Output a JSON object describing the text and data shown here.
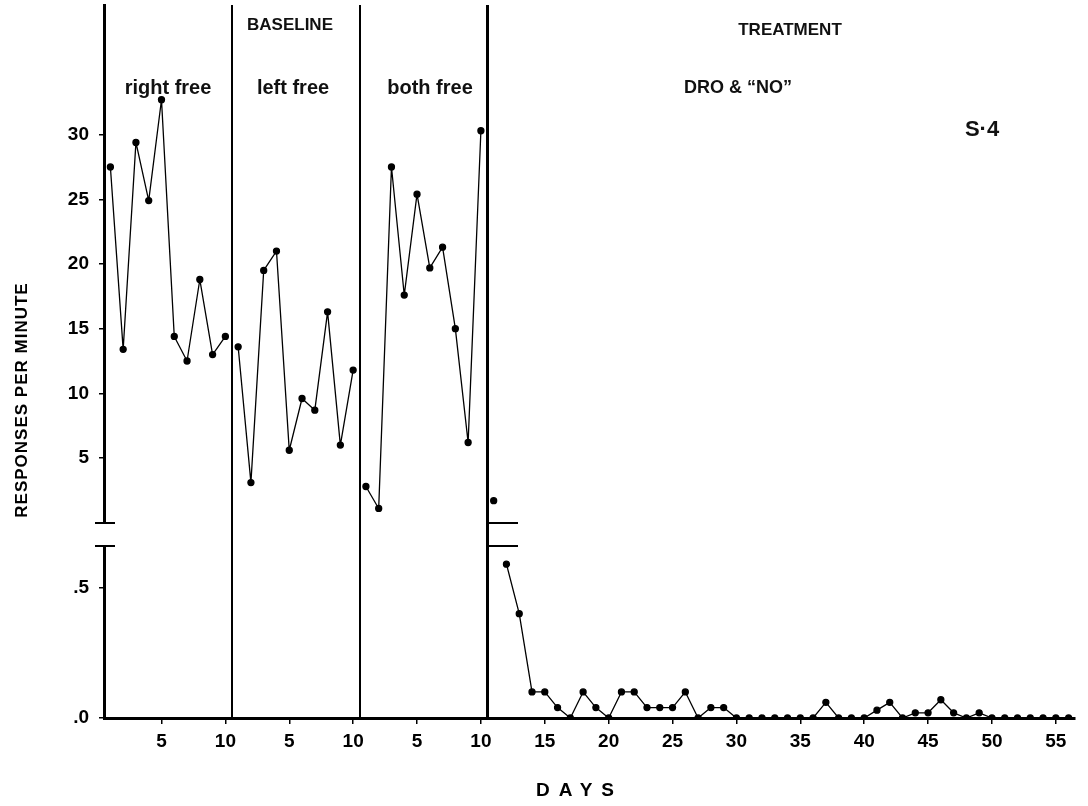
{
  "chart_data": [
    {
      "type": "line",
      "ylabel": "RESPONSES PER MINUTE",
      "ylim": [
        0,
        40
      ],
      "yticks": [
        5,
        10,
        15,
        20,
        25,
        30
      ],
      "tick_labels": "y",
      "marker": "circle",
      "grid": false,
      "legend": false,
      "annotations": [
        "BASELINE",
        "TREATMENT",
        "right free",
        "left free",
        "both free",
        "DRO & “NO”",
        "S·4"
      ],
      "categories": [
        null,
        null,
        null,
        null,
        "5",
        null,
        null,
        null,
        null,
        "10",
        null,
        null,
        null,
        null,
        "5",
        null,
        null,
        null,
        null,
        "10",
        null,
        null,
        null,
        null,
        "5",
        null,
        null,
        null,
        null,
        "10",
        null,
        null,
        null,
        null,
        "15",
        null,
        null,
        null,
        null,
        "20",
        null,
        null,
        null,
        null,
        "25",
        null,
        null,
        null,
        null,
        "30",
        null,
        null,
        null,
        null,
        "35",
        null,
        null,
        null,
        null,
        "40",
        null,
        null,
        null,
        null,
        "45",
        null,
        null,
        null,
        null,
        "50",
        null,
        null,
        null,
        null,
        "55",
        null
      ],
      "series": [
        {
          "color": "#000000",
          "values": [
            27.5,
            13.4,
            29.4,
            24.9,
            32.7,
            14.4,
            12.5,
            18.8,
            13.0,
            14.4,
            null,
            null,
            null,
            null,
            null,
            null,
            null,
            null,
            null,
            null,
            null,
            null,
            null,
            null,
            null,
            null,
            null,
            null,
            null,
            null,
            null,
            null,
            null,
            null,
            null,
            null,
            null,
            null,
            null,
            null,
            null,
            null,
            null,
            null,
            null,
            null,
            null,
            null,
            null,
            null,
            null,
            null,
            null,
            null,
            null,
            null,
            null,
            null,
            null,
            null,
            null,
            null,
            null,
            null,
            null,
            null,
            null,
            null,
            null,
            null,
            null,
            null,
            null,
            null,
            null,
            null
          ]
        },
        {
          "color": "#000000",
          "values": [
            null,
            null,
            null,
            null,
            null,
            null,
            null,
            null,
            null,
            null,
            13.6,
            3.1,
            19.5,
            21.0,
            5.6,
            9.6,
            8.7,
            16.3,
            6.0,
            11.8,
            null,
            null,
            null,
            null,
            null,
            null,
            null,
            null,
            null,
            null,
            null,
            null,
            null,
            null,
            null,
            null,
            null,
            null,
            null,
            null,
            null,
            null,
            null,
            null,
            null,
            null,
            null,
            null,
            null,
            null,
            null,
            null,
            null,
            null,
            null,
            null,
            null,
            null,
            null,
            null,
            null,
            null,
            null,
            null,
            null,
            null,
            null,
            null,
            null,
            null,
            null,
            null,
            null,
            null,
            null,
            null
          ]
        },
        {
          "color": "#000000",
          "values": [
            null,
            null,
            null,
            null,
            null,
            null,
            null,
            null,
            null,
            null,
            null,
            null,
            null,
            null,
            null,
            null,
            null,
            null,
            null,
            null,
            2.8,
            1.1,
            27.5,
            17.6,
            25.4,
            19.7,
            21.3,
            15.0,
            6.2,
            30.3,
            null,
            null,
            null,
            null,
            null,
            null,
            null,
            null,
            null,
            null,
            null,
            null,
            null,
            null,
            null,
            null,
            null,
            null,
            null,
            null,
            null,
            null,
            null,
            null,
            null,
            null,
            null,
            null,
            null,
            null,
            null,
            null,
            null,
            null,
            null,
            null,
            null,
            null,
            null,
            null,
            null,
            null,
            null,
            null,
            null,
            null
          ]
        },
        {
          "color": "#000000",
          "values": [
            null,
            null,
            null,
            null,
            null,
            null,
            null,
            null,
            null,
            null,
            null,
            null,
            null,
            null,
            null,
            null,
            null,
            null,
            null,
            null,
            null,
            null,
            null,
            null,
            null,
            null,
            null,
            null,
            null,
            null,
            1.7,
            null,
            null,
            null,
            null,
            null,
            null,
            null,
            null,
            null,
            null,
            null,
            null,
            null,
            null,
            null,
            null,
            null,
            null,
            null,
            null,
            null,
            null,
            null,
            null,
            null,
            null,
            null,
            null,
            null,
            null,
            null,
            null,
            null,
            null,
            null,
            null,
            null,
            null,
            null,
            null,
            null,
            null,
            null,
            null,
            null
          ]
        }
      ]
    },
    {
      "type": "line",
      "xlabel": "DAYS",
      "ylim": [
        0,
        0.65
      ],
      "yticks": [
        {
          "value": 0,
          "label": ".0"
        },
        {
          "value": 0.5,
          "label": ".5"
        }
      ],
      "marker": "circle",
      "grid": false,
      "legend": false,
      "categories": [
        null,
        null,
        null,
        null,
        "5",
        null,
        null,
        null,
        null,
        "10",
        null,
        null,
        null,
        null,
        "5",
        null,
        null,
        null,
        null,
        "10",
        null,
        null,
        null,
        null,
        "5",
        null,
        null,
        null,
        null,
        "10",
        null,
        null,
        null,
        null,
        "15",
        null,
        null,
        null,
        null,
        "20",
        null,
        null,
        null,
        null,
        "25",
        null,
        null,
        null,
        null,
        "30",
        null,
        null,
        null,
        null,
        "35",
        null,
        null,
        null,
        null,
        "40",
        null,
        null,
        null,
        null,
        "45",
        null,
        null,
        null,
        null,
        "50",
        null,
        null,
        null,
        null,
        "55",
        null
      ],
      "series": [
        {
          "color": "#000000",
          "values": [
            null,
            null,
            null,
            null,
            null,
            null,
            null,
            null,
            null,
            null,
            null,
            null,
            null,
            null,
            null,
            null,
            null,
            null,
            null,
            null,
            null,
            null,
            null,
            null,
            null,
            null,
            null,
            null,
            null,
            null,
            null,
            0.59,
            0.4,
            0.1,
            0.1,
            0.04,
            0.0,
            0.1,
            0.04,
            0.0,
            0.1,
            0.1,
            0.04,
            0.04,
            0.04,
            0.1,
            0.0,
            0.04,
            0.04,
            0.0,
            0.0,
            0.0,
            0.0,
            0.0,
            0.0,
            0.0,
            0.06,
            0.0,
            0.0,
            0.0,
            0.03,
            0.06,
            0.0,
            0.02,
            0.02,
            0.07,
            0.02,
            0.0,
            0.02,
            0.0,
            0.0,
            0.0,
            0.0,
            0.0,
            0.0,
            0.0
          ]
        }
      ]
    }
  ]
}
